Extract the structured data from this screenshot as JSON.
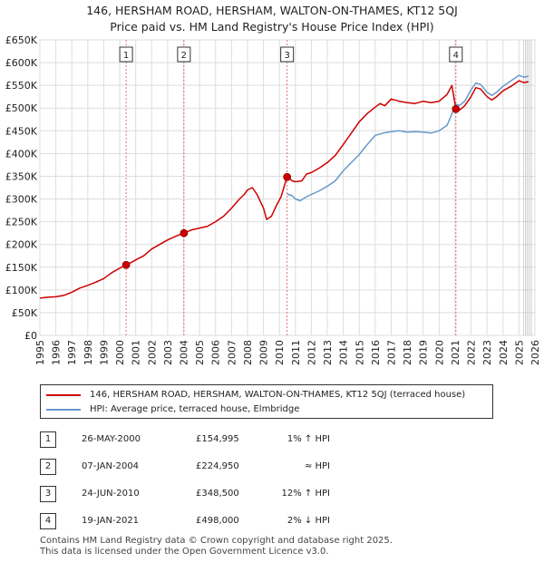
{
  "header": {
    "title": "146, HERSHAM ROAD, HERSHAM, WALTON-ON-THAMES, KT12 5QJ",
    "subtitle": "Price paid vs. HM Land Registry's House Price Index (HPI)"
  },
  "legend": {
    "property": "146, HERSHAM ROAD, HERSHAM, WALTON-ON-THAMES, KT12 5QJ (terraced house)",
    "hpi": "HPI: Average price, terraced house, Elmbridge"
  },
  "sales": [
    {
      "num": "1",
      "date": "26-MAY-2000",
      "price": "£154,995",
      "relation": "1% ↑ HPI"
    },
    {
      "num": "2",
      "date": "07-JAN-2004",
      "price": "£224,950",
      "relation": "≈ HPI"
    },
    {
      "num": "3",
      "date": "24-JUN-2010",
      "price": "£348,500",
      "relation": "12% ↑ HPI"
    },
    {
      "num": "4",
      "date": "19-JAN-2021",
      "price": "£498,000",
      "relation": "2% ↓ HPI"
    }
  ],
  "footer": {
    "line1": "Contains HM Land Registry data © Crown copyright and database right 2025.",
    "line2": "This data is licensed under the Open Government Licence v3.0."
  },
  "colors": {
    "property": "#cc0000",
    "hpi": "#6699cc",
    "marker_line": "#e07070",
    "grid": "#dddddd"
  },
  "chart_data": {
    "type": "line",
    "xlim": [
      1995,
      2026
    ],
    "ylim": [
      0,
      650000
    ],
    "x_ticks": [
      "1995",
      "1996",
      "1997",
      "1998",
      "1999",
      "2000",
      "2001",
      "2002",
      "2003",
      "2004",
      "2005",
      "2006",
      "2007",
      "2008",
      "2009",
      "2010",
      "2011",
      "2012",
      "2013",
      "2014",
      "2015",
      "2016",
      "2017",
      "2018",
      "2019",
      "2020",
      "2021",
      "2022",
      "2023",
      "2024",
      "2025",
      "2026"
    ],
    "y_ticks": [
      {
        "value": 0,
        "label": "£0"
      },
      {
        "value": 50000,
        "label": "£50K"
      },
      {
        "value": 100000,
        "label": "£100K"
      },
      {
        "value": 150000,
        "label": "£150K"
      },
      {
        "value": 200000,
        "label": "£200K"
      },
      {
        "value": 250000,
        "label": "£250K"
      },
      {
        "value": 300000,
        "label": "£300K"
      },
      {
        "value": 350000,
        "label": "£350K"
      },
      {
        "value": 400000,
        "label": "£400K"
      },
      {
        "value": 450000,
        "label": "£450K"
      },
      {
        "value": 500000,
        "label": "£500K"
      },
      {
        "value": 550000,
        "label": "£550K"
      },
      {
        "value": 600000,
        "label": "£600K"
      },
      {
        "value": 650000,
        "label": "£650K"
      }
    ],
    "markers": [
      {
        "label": "1",
        "x": 2000.4,
        "y": 154995
      },
      {
        "label": "2",
        "x": 2004.02,
        "y": 224950
      },
      {
        "label": "3",
        "x": 2010.48,
        "y": 348500
      },
      {
        "label": "4",
        "x": 2021.05,
        "y": 498000
      }
    ],
    "series": [
      {
        "name": "HPI: Average price, terraced house, Elmbridge",
        "points": [
          [
            2010.48,
            311000
          ],
          [
            2010.8,
            307000
          ],
          [
            2011.0,
            300000
          ],
          [
            2011.3,
            296000
          ],
          [
            2011.6,
            303000
          ],
          [
            2012.0,
            310000
          ],
          [
            2012.5,
            318000
          ],
          [
            2013.0,
            328000
          ],
          [
            2013.5,
            340000
          ],
          [
            2014.0,
            362000
          ],
          [
            2014.5,
            380000
          ],
          [
            2015.0,
            398000
          ],
          [
            2015.5,
            420000
          ],
          [
            2016.0,
            440000
          ],
          [
            2016.5,
            445000
          ],
          [
            2017.0,
            448000
          ],
          [
            2017.5,
            450000
          ],
          [
            2018.0,
            447000
          ],
          [
            2018.5,
            448000
          ],
          [
            2019.0,
            447000
          ],
          [
            2019.5,
            445000
          ],
          [
            2020.0,
            450000
          ],
          [
            2020.5,
            462000
          ],
          [
            2021.05,
            508000
          ],
          [
            2021.3,
            506000
          ],
          [
            2021.6,
            515000
          ],
          [
            2022.0,
            540000
          ],
          [
            2022.3,
            555000
          ],
          [
            2022.6,
            552000
          ],
          [
            2023.0,
            535000
          ],
          [
            2023.3,
            528000
          ],
          [
            2023.6,
            535000
          ],
          [
            2024.0,
            548000
          ],
          [
            2024.5,
            560000
          ],
          [
            2025.0,
            572000
          ],
          [
            2025.3,
            568000
          ],
          [
            2025.6,
            570000
          ]
        ]
      },
      {
        "name": "146, HERSHAM ROAD, HERSHAM, WALTON-ON-THAMES, KT12 5QJ (terraced house)",
        "points": [
          [
            1995.0,
            82000
          ],
          [
            1995.5,
            84000
          ],
          [
            1996.0,
            85000
          ],
          [
            1996.5,
            88000
          ],
          [
            1997.0,
            95000
          ],
          [
            1997.5,
            104000
          ],
          [
            1998.0,
            110000
          ],
          [
            1998.5,
            117000
          ],
          [
            1999.0,
            125000
          ],
          [
            1999.5,
            138000
          ],
          [
            2000.0,
            148000
          ],
          [
            2000.4,
            154995
          ],
          [
            2000.8,
            162000
          ],
          [
            2001.0,
            166000
          ],
          [
            2001.5,
            175000
          ],
          [
            2002.0,
            190000
          ],
          [
            2002.5,
            200000
          ],
          [
            2003.0,
            210000
          ],
          [
            2003.5,
            218000
          ],
          [
            2004.02,
            224950
          ],
          [
            2004.5,
            232000
          ],
          [
            2005.0,
            236000
          ],
          [
            2005.5,
            240000
          ],
          [
            2006.0,
            250000
          ],
          [
            2006.5,
            262000
          ],
          [
            2007.0,
            280000
          ],
          [
            2007.5,
            300000
          ],
          [
            2007.8,
            310000
          ],
          [
            2008.0,
            320000
          ],
          [
            2008.3,
            325000
          ],
          [
            2008.6,
            310000
          ],
          [
            2009.0,
            280000
          ],
          [
            2009.2,
            255000
          ],
          [
            2009.5,
            262000
          ],
          [
            2009.8,
            285000
          ],
          [
            2010.1,
            305000
          ],
          [
            2010.48,
            348500
          ],
          [
            2010.8,
            340000
          ],
          [
            2011.0,
            338000
          ],
          [
            2011.4,
            340000
          ],
          [
            2011.7,
            355000
          ],
          [
            2012.0,
            358000
          ],
          [
            2012.5,
            368000
          ],
          [
            2013.0,
            380000
          ],
          [
            2013.5,
            396000
          ],
          [
            2014.0,
            420000
          ],
          [
            2014.5,
            445000
          ],
          [
            2015.0,
            470000
          ],
          [
            2015.5,
            488000
          ],
          [
            2016.0,
            502000
          ],
          [
            2016.3,
            510000
          ],
          [
            2016.6,
            505000
          ],
          [
            2017.0,
            520000
          ],
          [
            2017.5,
            515000
          ],
          [
            2018.0,
            512000
          ],
          [
            2018.5,
            510000
          ],
          [
            2019.0,
            515000
          ],
          [
            2019.5,
            512000
          ],
          [
            2020.0,
            515000
          ],
          [
            2020.5,
            530000
          ],
          [
            2020.8,
            550000
          ],
          [
            2021.05,
            498000
          ],
          [
            2021.3,
            496000
          ],
          [
            2021.6,
            505000
          ],
          [
            2022.0,
            525000
          ],
          [
            2022.3,
            545000
          ],
          [
            2022.6,
            542000
          ],
          [
            2023.0,
            525000
          ],
          [
            2023.3,
            518000
          ],
          [
            2023.6,
            525000
          ],
          [
            2024.0,
            538000
          ],
          [
            2024.5,
            548000
          ],
          [
            2025.0,
            560000
          ],
          [
            2025.3,
            556000
          ],
          [
            2025.6,
            558000
          ]
        ]
      }
    ]
  }
}
